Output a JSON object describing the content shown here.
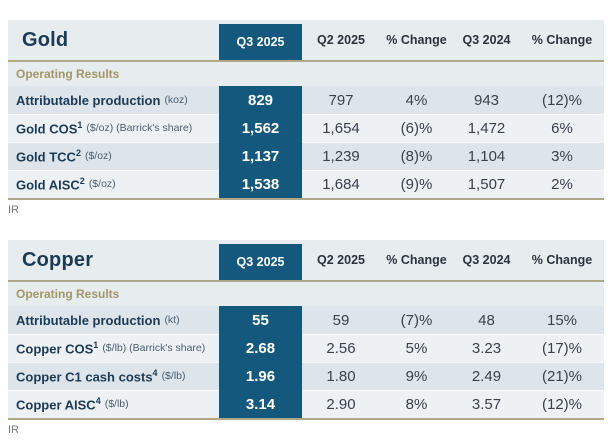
{
  "colors": {
    "accent_blue": "#15587e",
    "rule_tan": "#b0a788",
    "section_label_tan": "#a29566",
    "row_stripe_dark": "#dde5eb",
    "row_stripe_light": "#eef1f4",
    "title_navy": "#1b3a55"
  },
  "tables": [
    {
      "title": "Gold",
      "columns": [
        "Q3 2025",
        "Q2 2025",
        "% Change",
        "Q3 2024",
        "% Change"
      ],
      "section_label": "Operating Results",
      "rows": [
        {
          "label": "Attributable production",
          "sup": "",
          "unit": "(koz)",
          "values": [
            "829",
            "797",
            "4%",
            "943",
            "(12)%"
          ]
        },
        {
          "label": "Gold COS",
          "sup": "1",
          "unit": "($/oz) (Barrick's share)",
          "values": [
            "1,562",
            "1,654",
            "(6)%",
            "1,472",
            "6%"
          ]
        },
        {
          "label": "Gold TCC",
          "sup": "2",
          "unit": "($/oz)",
          "values": [
            "1,137",
            "1,239",
            "(8)%",
            "1,104",
            "3%"
          ]
        },
        {
          "label": "Gold AISC",
          "sup": "2",
          "unit": "($/oz)",
          "values": [
            "1,538",
            "1,684",
            "(9)%",
            "1,507",
            "2%"
          ]
        }
      ],
      "footnote": "IR"
    },
    {
      "title": "Copper",
      "columns": [
        "Q3 2025",
        "Q2 2025",
        "% Change",
        "Q3 2024",
        "% Change"
      ],
      "section_label": "Operating Results",
      "rows": [
        {
          "label": "Attributable production",
          "sup": "",
          "unit": "(kt)",
          "values": [
            "55",
            "59",
            "(7)%",
            "48",
            "15%"
          ]
        },
        {
          "label": "Copper COS",
          "sup": "1",
          "unit": "($/lb) (Barrick's share)",
          "values": [
            "2.68",
            "2.56",
            "5%",
            "3.23",
            "(17)%"
          ]
        },
        {
          "label": "Copper C1 cash costs",
          "sup": "4",
          "unit": "($/lb)",
          "values": [
            "1.96",
            "1.80",
            "9%",
            "2.49",
            "(21)%"
          ]
        },
        {
          "label": "Copper AISC",
          "sup": "4",
          "unit": "($/lb)",
          "values": [
            "3.14",
            "2.90",
            "8%",
            "3.57",
            "(12)%"
          ]
        }
      ],
      "footnote": "IR"
    }
  ]
}
